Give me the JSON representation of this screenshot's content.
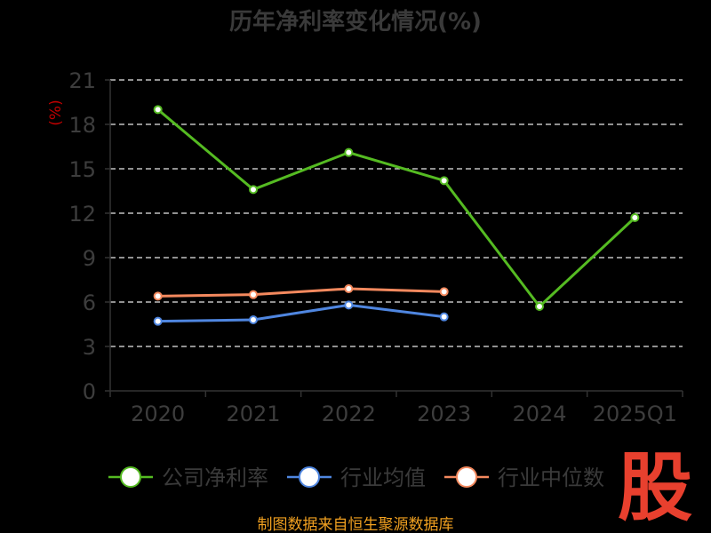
{
  "chart_data": {
    "type": "line",
    "title": "历年净利率变化情况(%)",
    "ylabel": "(%)",
    "categories": [
      "2020",
      "2021",
      "2022",
      "2023",
      "2024",
      "2025Q1"
    ],
    "yticks": [
      "0",
      "3",
      "6",
      "9",
      "12",
      "15",
      "18",
      "21"
    ],
    "ylim": [
      0,
      21
    ],
    "grid": true,
    "legend": "bottom",
    "series": [
      {
        "name": "公司净利率",
        "color": "#55bb22",
        "values": [
          19.0,
          13.6,
          16.1,
          14.2,
          5.7,
          11.7
        ]
      },
      {
        "name": "行业均值",
        "color": "#4f86e0",
        "values": [
          4.7,
          4.8,
          5.8,
          5.0,
          null,
          null
        ]
      },
      {
        "name": "行业中位数",
        "color": "#f4895e",
        "values": [
          6.4,
          6.5,
          6.9,
          6.7,
          null,
          null
        ]
      }
    ]
  },
  "watermark": "股",
  "source": "制图数据来自恒生聚源数据库"
}
